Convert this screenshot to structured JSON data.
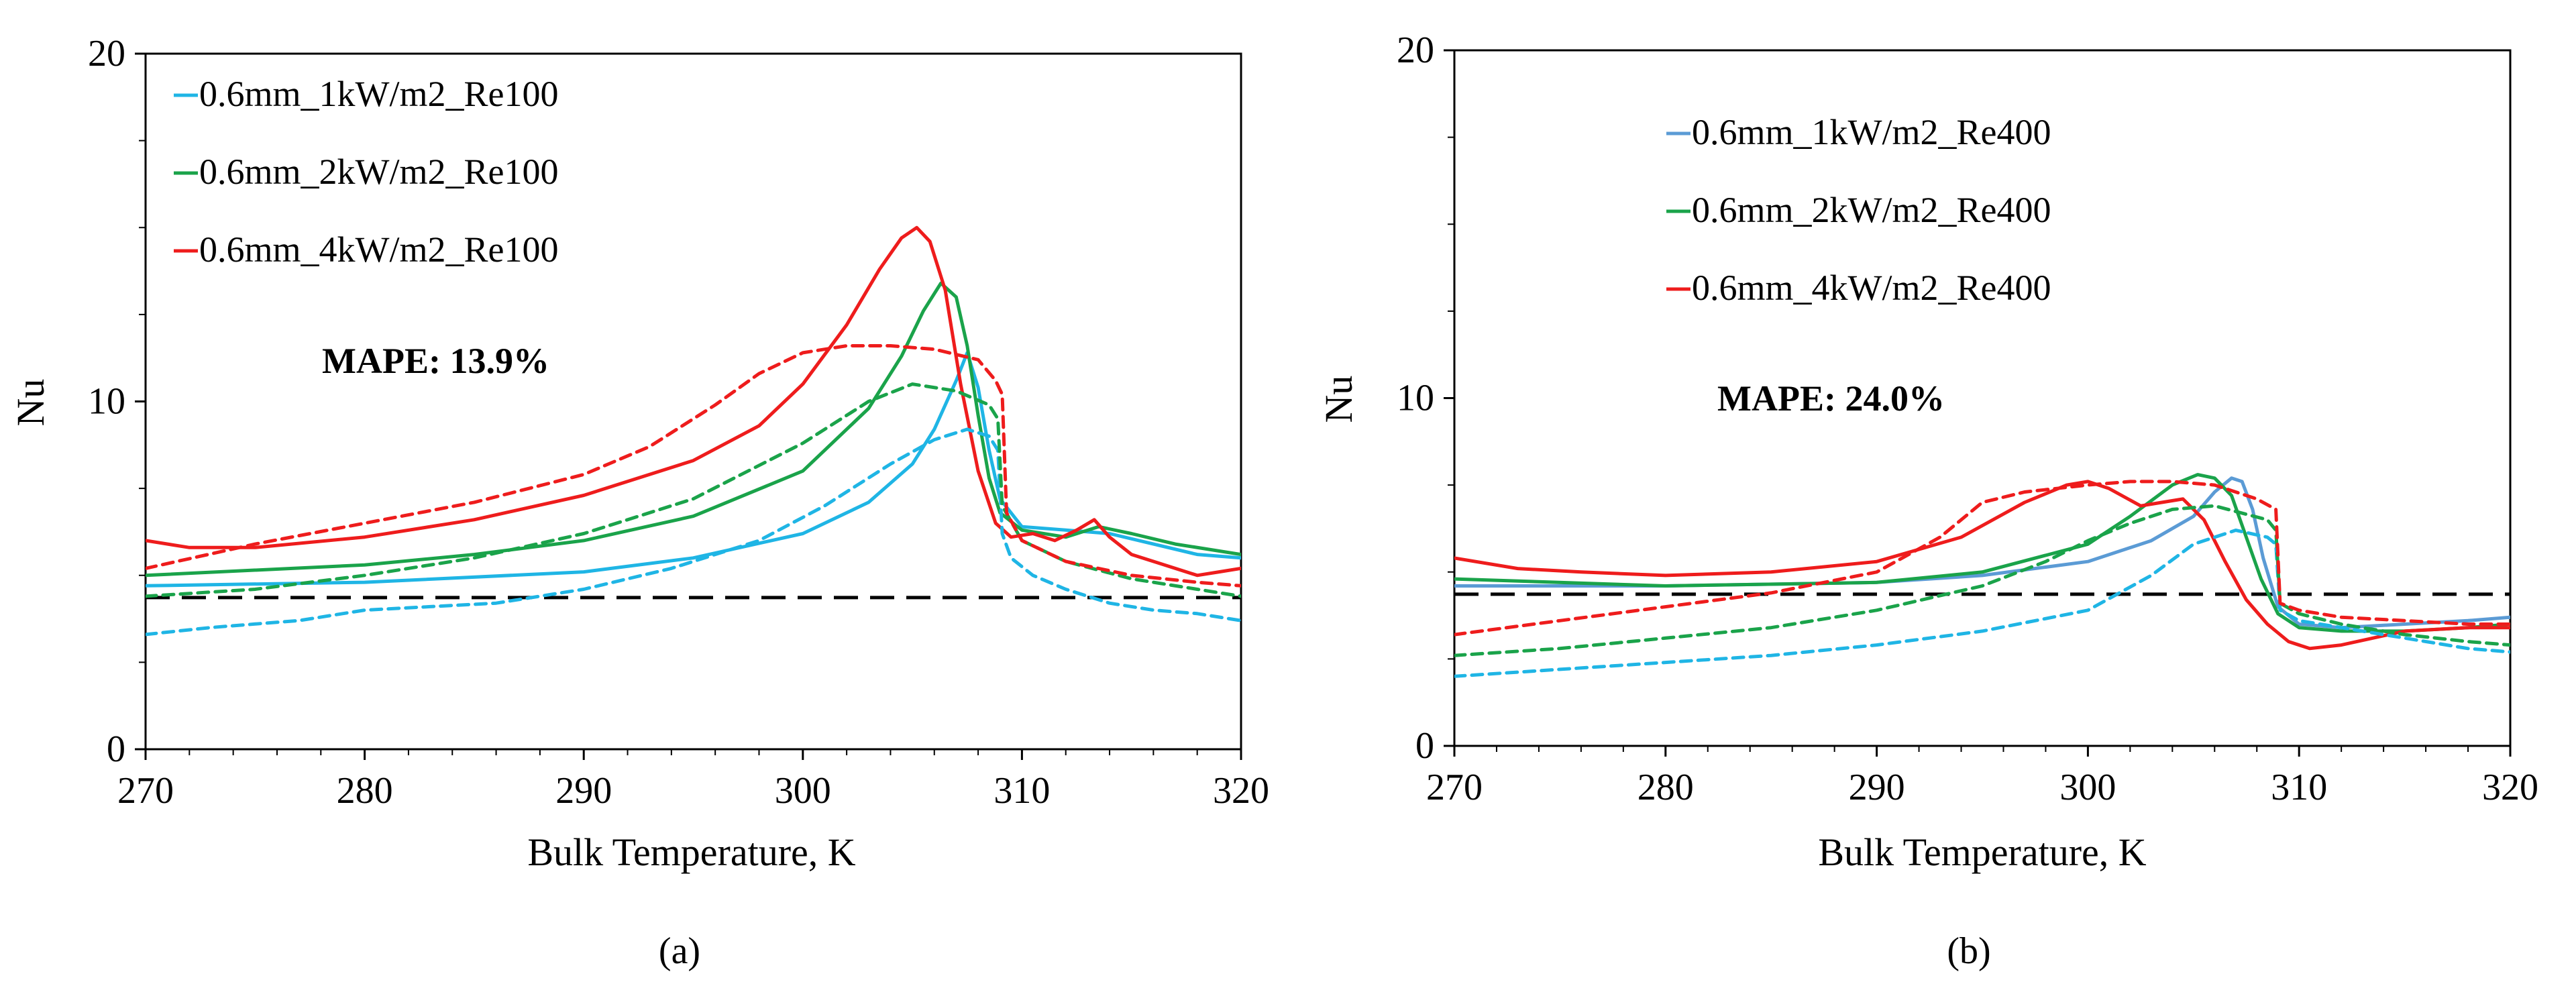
{
  "figure": {
    "panels": [
      {
        "id": "a",
        "caption": "(a)",
        "mape_label": "MAPE: 13.9%"
      },
      {
        "id": "b",
        "caption": "(b)",
        "mape_label": "MAPE: 24.0%"
      }
    ]
  },
  "chart_data": [
    {
      "type": "line",
      "title": "",
      "caption": "(a)",
      "xlabel": "Bulk Temperature, K",
      "ylabel": "Nu",
      "xlim": [
        270,
        320
      ],
      "ylim": [
        0,
        20
      ],
      "xticks": [
        270,
        280,
        290,
        300,
        310,
        320
      ],
      "yticks_labeled": [
        0,
        10,
        20
      ],
      "yticks_minor": [
        2.5,
        5,
        7.5,
        12.5,
        15,
        17.5
      ],
      "grid": false,
      "legend_position": "top-left",
      "annotation": "MAPE: 13.9%",
      "reference_line": {
        "y": 4.36,
        "style": "dashed",
        "color": "#000000"
      },
      "series": [
        {
          "name": "0.6mm_1kW/m2_Re100",
          "color": "#1fb5e5",
          "dash": false,
          "legend": true,
          "x": [
            270,
            280,
            290,
            295,
            300,
            303,
            305,
            306,
            307,
            307.5,
            308,
            308.5,
            309,
            310,
            312,
            314,
            316,
            318,
            320
          ],
          "y": [
            4.7,
            4.8,
            5.1,
            5.5,
            6.2,
            7.1,
            8.2,
            9.2,
            10.6,
            11.4,
            10.4,
            8.6,
            7.2,
            6.4,
            6.3,
            6.2,
            5.9,
            5.6,
            5.5
          ]
        },
        {
          "name": "0.6mm_2kW/m2_Re100",
          "color": "#1aa34a",
          "dash": false,
          "legend": true,
          "x": [
            270,
            280,
            285,
            290,
            295,
            300,
            303,
            304.5,
            305.5,
            306.3,
            307,
            307.5,
            308,
            308.5,
            309,
            310,
            312,
            313.5,
            315,
            317,
            320
          ],
          "y": [
            5.0,
            5.3,
            5.6,
            6.0,
            6.7,
            8.0,
            9.8,
            11.3,
            12.6,
            13.4,
            13.0,
            11.6,
            9.6,
            7.8,
            6.8,
            6.3,
            6.1,
            6.4,
            6.2,
            5.9,
            5.6
          ]
        },
        {
          "name": "0.6mm_4kW/m2_Re100",
          "color": "#ee1c1c",
          "dash": false,
          "legend": true,
          "x": [
            270,
            272,
            275,
            280,
            285,
            290,
            295,
            298,
            300,
            302,
            303.5,
            304.5,
            305.2,
            305.8,
            306.5,
            307.2,
            308,
            308.8,
            309.5,
            310.5,
            311.5,
            312.5,
            313.3,
            314,
            315,
            316,
            317,
            318,
            319,
            320
          ],
          "y": [
            6.0,
            5.8,
            5.8,
            6.1,
            6.6,
            7.3,
            8.3,
            9.3,
            10.5,
            12.2,
            13.8,
            14.7,
            15.0,
            14.6,
            13.2,
            10.5,
            8.0,
            6.5,
            6.1,
            6.2,
            6.0,
            6.3,
            6.6,
            6.1,
            5.6,
            5.4,
            5.2,
            5.0,
            5.1,
            5.2
          ]
        },
        {
          "name": "0.6mm_1kW/m2_Re100 (predicted)",
          "color": "#1fb5e5",
          "dash": true,
          "legend": false,
          "x": [
            270,
            273,
            275,
            277,
            280,
            283,
            286,
            290,
            294,
            298,
            301,
            304,
            306,
            307.5,
            308.5,
            308.9,
            309.1,
            309.5,
            310.5,
            312,
            314,
            316,
            318,
            320
          ],
          "y": [
            3.3,
            3.5,
            3.6,
            3.7,
            4.0,
            4.1,
            4.2,
            4.6,
            5.2,
            6.0,
            7.0,
            8.2,
            8.9,
            9.2,
            9.0,
            8.6,
            6.2,
            5.5,
            5.0,
            4.6,
            4.2,
            4.0,
            3.9,
            3.7
          ]
        },
        {
          "name": "0.6mm_2kW/m2_Re100 (predicted)",
          "color": "#1aa34a",
          "dash": true,
          "legend": false,
          "x": [
            270,
            275,
            280,
            285,
            290,
            295,
            300,
            303,
            305,
            307,
            308.5,
            308.9,
            309.1,
            310,
            312,
            315,
            318,
            320
          ],
          "y": [
            4.4,
            4.6,
            5.0,
            5.5,
            6.2,
            7.2,
            8.8,
            10.0,
            10.5,
            10.3,
            9.9,
            9.5,
            7.0,
            6.0,
            5.4,
            4.9,
            4.6,
            4.4
          ]
        },
        {
          "name": "0.6mm_4kW/m2_Re100 (predicted)",
          "color": "#ee1c1c",
          "dash": true,
          "legend": false,
          "x": [
            270,
            275,
            280,
            285,
            290,
            293,
            296,
            298,
            300,
            302,
            304,
            306,
            308,
            308.8,
            309.1,
            309.3,
            310,
            312,
            315,
            318,
            320
          ],
          "y": [
            5.2,
            5.9,
            6.5,
            7.1,
            7.9,
            8.7,
            9.9,
            10.8,
            11.4,
            11.6,
            11.6,
            11.5,
            11.2,
            10.6,
            10.2,
            6.8,
            6.0,
            5.4,
            5.0,
            4.8,
            4.7
          ]
        }
      ]
    },
    {
      "type": "line",
      "title": "",
      "caption": "(b)",
      "xlabel": "Bulk Temperature, K",
      "ylabel": "Nu",
      "xlim": [
        270,
        320
      ],
      "ylim": [
        0,
        20
      ],
      "xticks": [
        270,
        280,
        290,
        300,
        310,
        320
      ],
      "yticks_labeled": [
        0,
        10,
        20
      ],
      "yticks_minor": [
        2.5,
        5,
        7.5,
        12.5,
        15,
        17.5
      ],
      "grid": false,
      "legend_position": "top-center",
      "annotation": "MAPE: 24.0%",
      "reference_line": {
        "y": 4.36,
        "style": "dashed",
        "color": "#000000"
      },
      "series": [
        {
          "name": "0.6mm_1kW/m2_Re400",
          "color": "#5b9bd5",
          "dash": false,
          "legend": true,
          "x": [
            270,
            280,
            290,
            295,
            300,
            303,
            305,
            306,
            306.8,
            307.3,
            307.8,
            308.3,
            309,
            310,
            312,
            315,
            318,
            320
          ],
          "y": [
            4.6,
            4.6,
            4.7,
            4.9,
            5.3,
            5.9,
            6.6,
            7.3,
            7.7,
            7.6,
            6.8,
            5.4,
            4.0,
            3.5,
            3.4,
            3.5,
            3.6,
            3.7
          ]
        },
        {
          "name": "0.6mm_2kW/m2_Re400",
          "color": "#1aa34a",
          "dash": false,
          "legend": true,
          "x": [
            270,
            280,
            290,
            295,
            300,
            302,
            304,
            305.2,
            306,
            306.8,
            307.5,
            308.2,
            309,
            310,
            312,
            315,
            318,
            320
          ],
          "y": [
            4.8,
            4.6,
            4.7,
            5.0,
            5.8,
            6.6,
            7.5,
            7.8,
            7.7,
            7.2,
            6.0,
            4.8,
            3.8,
            3.4,
            3.3,
            3.3,
            3.4,
            3.5
          ]
        },
        {
          "name": "0.6mm_4kW/m2_Re400",
          "color": "#ee1c1c",
          "dash": false,
          "legend": true,
          "x": [
            270,
            273,
            276,
            280,
            285,
            290,
            294,
            297,
            299,
            300,
            301,
            302.5,
            303.5,
            304.5,
            305.5,
            306.5,
            307.5,
            308.5,
            309.5,
            310.5,
            312,
            315,
            318,
            320
          ],
          "y": [
            5.4,
            5.1,
            5.0,
            4.9,
            5.0,
            5.3,
            6.0,
            7.0,
            7.5,
            7.6,
            7.4,
            6.9,
            7.0,
            7.1,
            6.5,
            5.3,
            4.2,
            3.5,
            3.0,
            2.8,
            2.9,
            3.3,
            3.4,
            3.4
          ]
        },
        {
          "name": "0.6mm_1kW/m2_Re400 (predicted)",
          "color": "#1fb5e5",
          "dash": true,
          "legend": false,
          "x": [
            270,
            275,
            280,
            285,
            290,
            295,
            300,
            303,
            305,
            307,
            308.5,
            308.9,
            309.1,
            310,
            312,
            315,
            318,
            320
          ],
          "y": [
            2.0,
            2.2,
            2.4,
            2.6,
            2.9,
            3.3,
            3.9,
            4.9,
            5.8,
            6.2,
            6.0,
            5.8,
            3.9,
            3.6,
            3.4,
            3.1,
            2.8,
            2.7
          ]
        },
        {
          "name": "0.6mm_2kW/m2_Re400 (predicted)",
          "color": "#1aa34a",
          "dash": true,
          "legend": false,
          "x": [
            270,
            275,
            280,
            285,
            290,
            295,
            298,
            300,
            302,
            304,
            306,
            308.5,
            308.9,
            309.1,
            310,
            312,
            315,
            318,
            320
          ],
          "y": [
            2.6,
            2.8,
            3.1,
            3.4,
            3.9,
            4.6,
            5.3,
            5.9,
            6.4,
            6.8,
            6.9,
            6.5,
            6.2,
            4.1,
            3.8,
            3.5,
            3.2,
            3.0,
            2.9
          ]
        },
        {
          "name": "0.6mm_4kW/m2_Re400 (predicted)",
          "color": "#ee1c1c",
          "dash": true,
          "legend": false,
          "x": [
            270,
            275,
            280,
            285,
            290,
            293,
            295,
            297,
            300,
            302,
            304,
            306,
            308,
            308.9,
            309.1,
            310,
            312,
            315,
            318,
            320
          ],
          "y": [
            3.2,
            3.6,
            4.0,
            4.4,
            5.0,
            6.0,
            7.0,
            7.3,
            7.5,
            7.6,
            7.6,
            7.5,
            7.1,
            6.8,
            4.1,
            3.9,
            3.7,
            3.6,
            3.5,
            3.5
          ]
        }
      ]
    }
  ]
}
